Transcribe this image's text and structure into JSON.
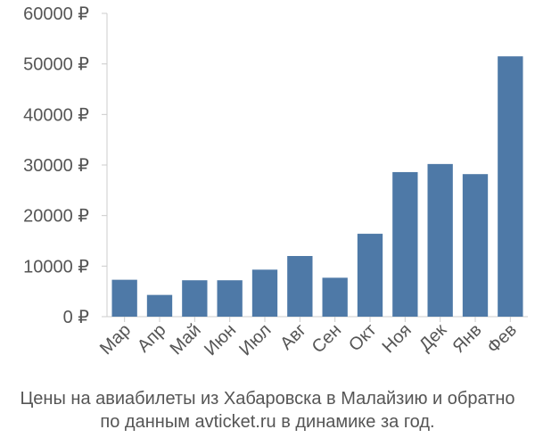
{
  "chart_data": {
    "type": "bar",
    "categories": [
      "Мар",
      "Апр",
      "Май",
      "Июн",
      "Июл",
      "Авг",
      "Сен",
      "Окт",
      "Ноя",
      "Дек",
      "Янв",
      "Фев"
    ],
    "values": [
      7300,
      4300,
      7200,
      7200,
      9300,
      12000,
      7700,
      16400,
      28600,
      30200,
      28200,
      51500
    ],
    "ylim": [
      0,
      60000
    ],
    "yticks": [
      0,
      10000,
      20000,
      30000,
      40000,
      50000,
      60000
    ],
    "ytick_labels": [
      "0 ₽",
      "10000 ₽",
      "20000 ₽",
      "30000 ₽",
      "40000 ₽",
      "50000 ₽",
      "60000 ₽"
    ],
    "grid": false,
    "bar_color": "#4e79a7"
  },
  "caption": {
    "line1": "Цены на авиабилеты из Хабаровска в Малайзию и обратно",
    "line2": "по данным avticket.ru в динамике за год."
  }
}
